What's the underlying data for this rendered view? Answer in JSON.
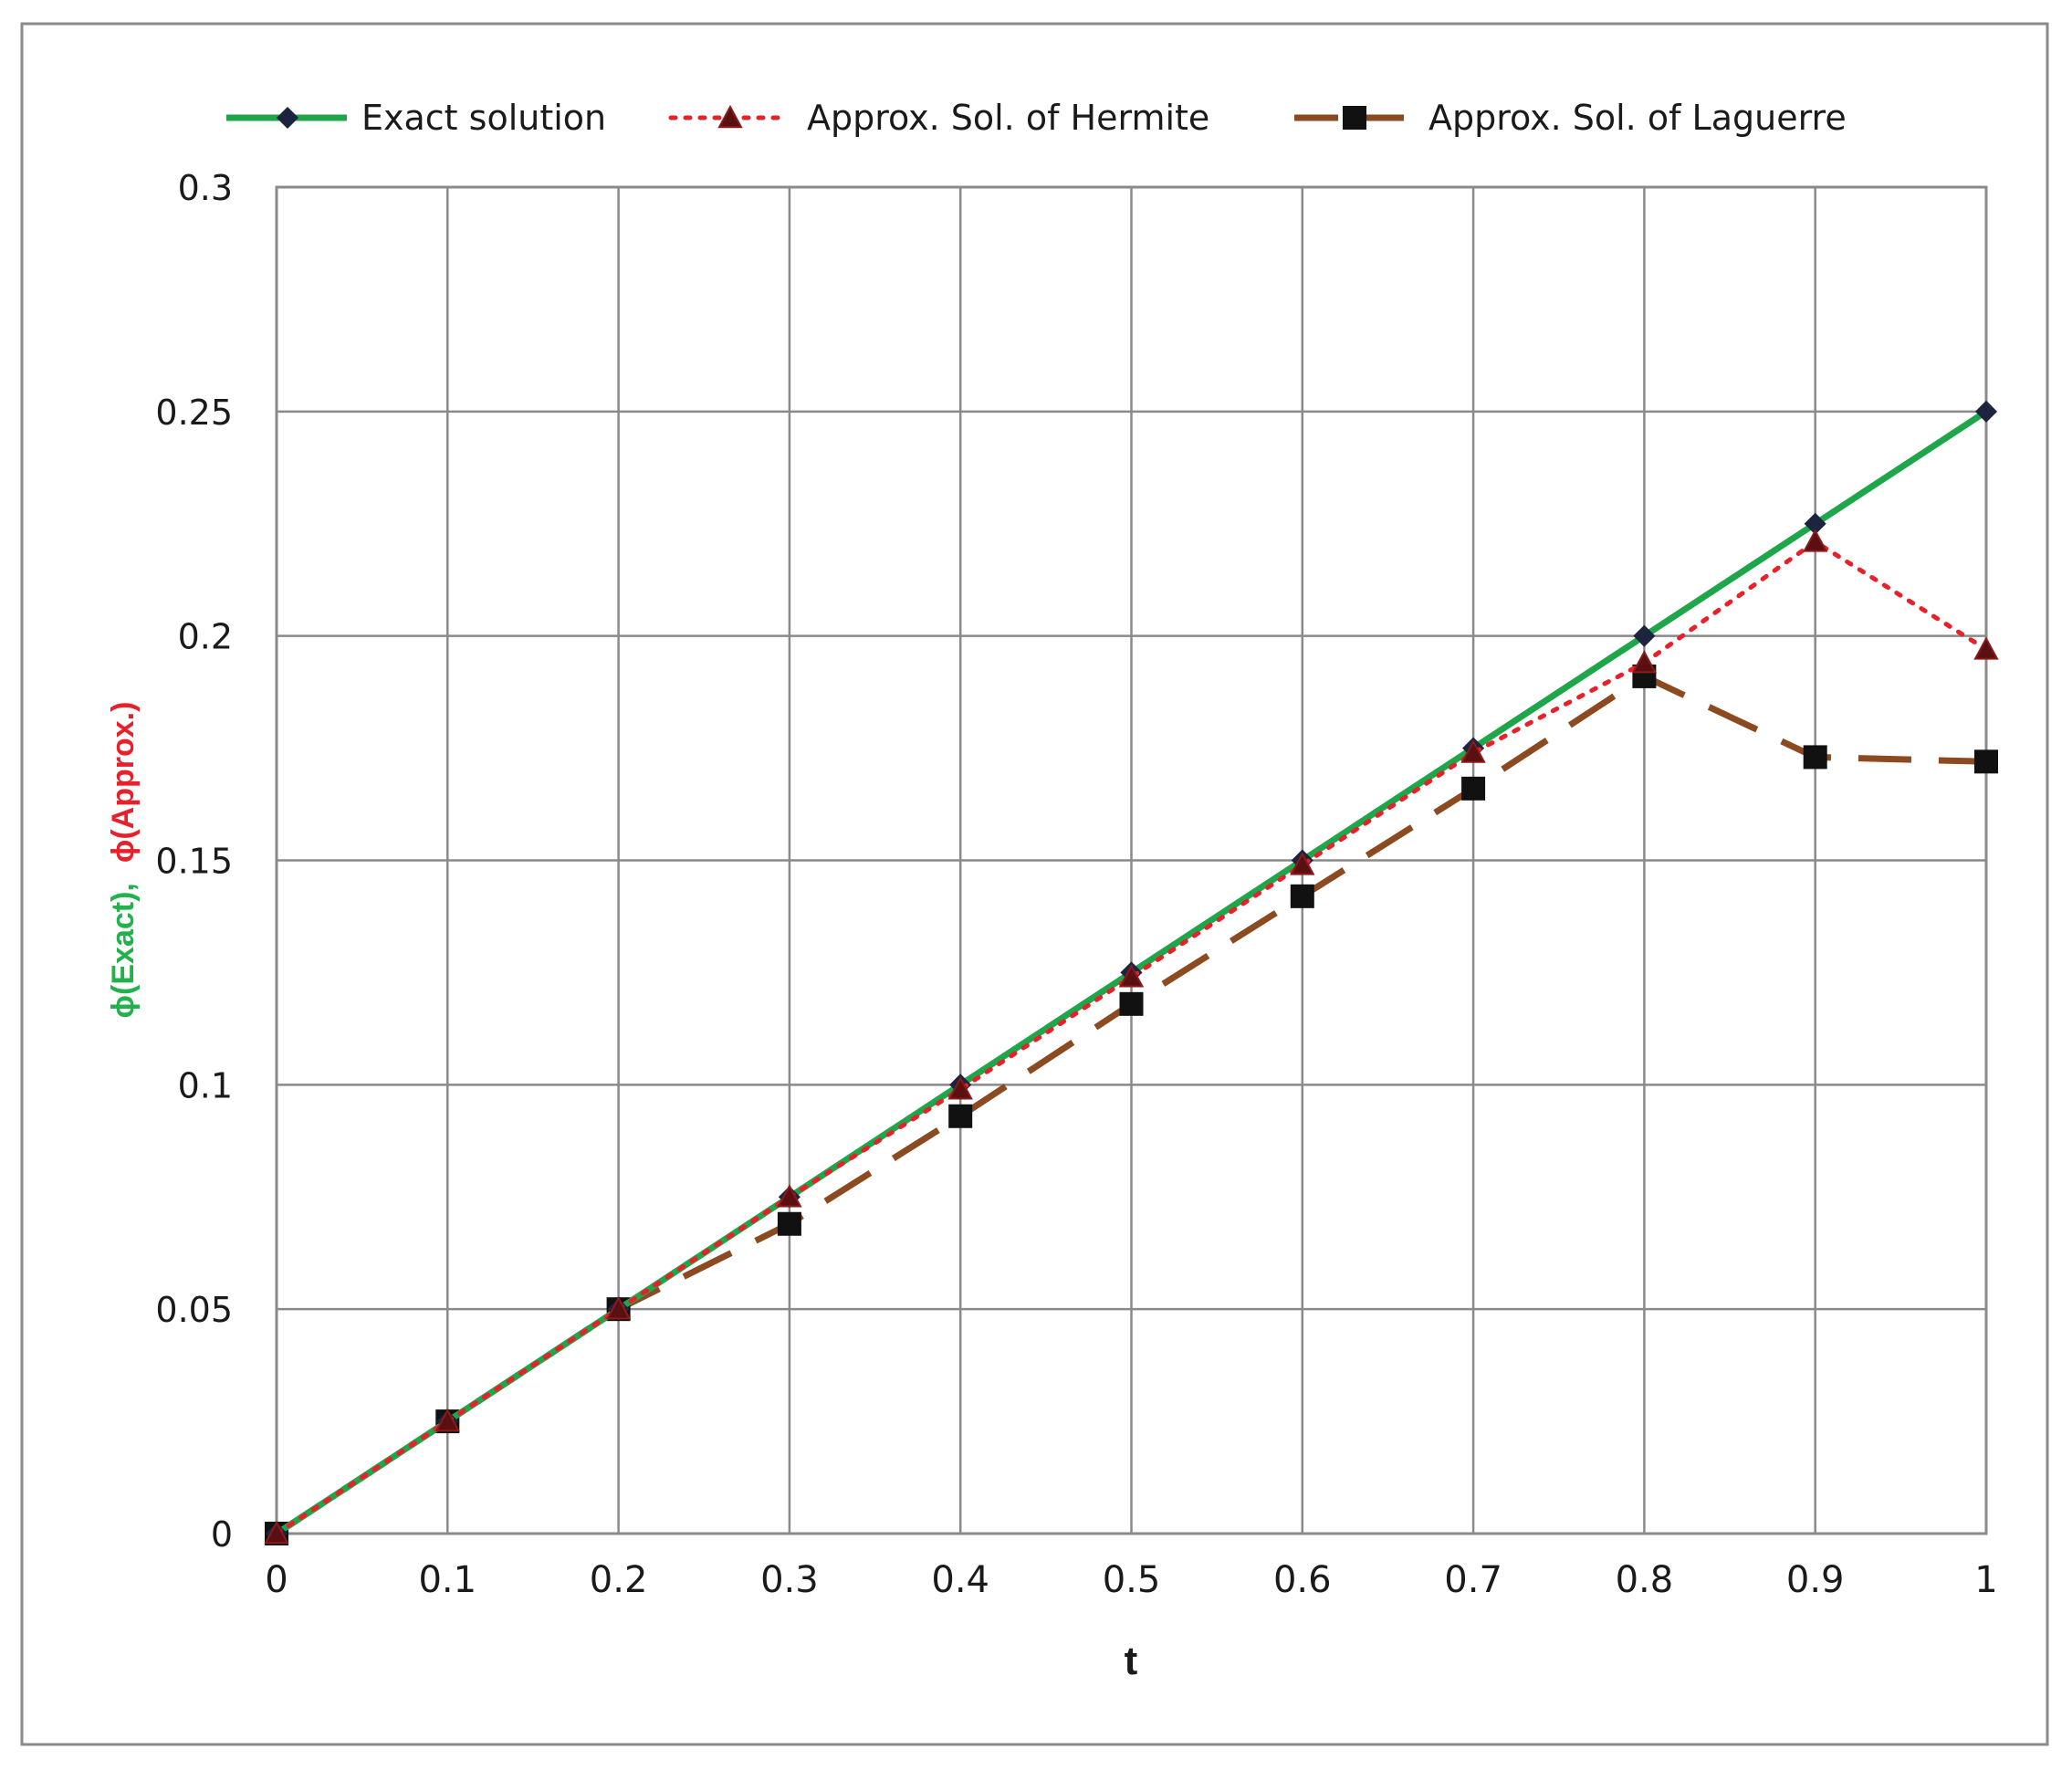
{
  "chart_data": {
    "type": "line",
    "title": "",
    "xlabel": "t",
    "ylabel_parts": [
      {
        "text": "ϕ(Exact),",
        "color": "#22b14c"
      },
      {
        "text": "ϕ(Approx.)",
        "color": "#e8202a"
      }
    ],
    "x": [
      0,
      0.1,
      0.2,
      0.3,
      0.4,
      0.5,
      0.6,
      0.7,
      0.8,
      0.9,
      1
    ],
    "xlim": [
      0,
      1
    ],
    "ylim": [
      0,
      0.3
    ],
    "x_ticks": [
      "0",
      "0.1",
      "0.2",
      "0.3",
      "0.4",
      "0.5",
      "0.6",
      "0.7",
      "0.8",
      "0.9",
      "1"
    ],
    "y_ticks": [
      "0",
      "0.05",
      "0.1",
      "0.15",
      "0.2",
      "0.25",
      "0.3"
    ],
    "grid": true,
    "legend_position": "top",
    "series": [
      {
        "name": "Exact solution",
        "color": "#1fa64a",
        "line_style": "solid",
        "marker": "diamond",
        "marker_color": "#1c2440",
        "values": [
          0,
          0.025,
          0.05,
          0.075,
          0.1,
          0.125,
          0.15,
          0.175,
          0.2,
          0.225,
          0.25
        ]
      },
      {
        "name": "Approx. Sol. of Hermite",
        "color": "#e8202a",
        "line_style": "dotted",
        "marker": "triangle",
        "marker_color": "#5a0f12",
        "values": [
          0,
          0.025,
          0.05,
          0.075,
          0.099,
          0.124,
          0.149,
          0.174,
          0.194,
          0.221,
          0.197
        ]
      },
      {
        "name": "Approx. Sol. of Laguerre",
        "color": "#8b4a1f",
        "line_style": "dashed",
        "marker": "square",
        "marker_color": "#111111",
        "values": [
          0,
          0.025,
          0.05,
          0.069,
          0.093,
          0.118,
          0.142,
          0.166,
          0.191,
          0.173,
          0.172
        ]
      }
    ]
  }
}
